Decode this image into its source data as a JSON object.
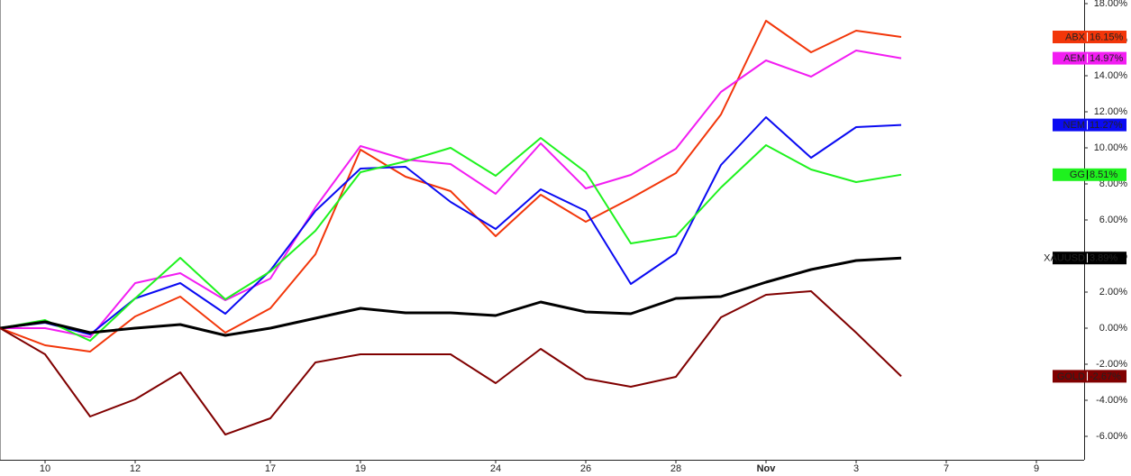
{
  "chart_data": {
    "type": "line",
    "categories": [
      null,
      "10",
      null,
      "12",
      null,
      null,
      "17",
      null,
      "19",
      null,
      null,
      "24",
      null,
      "26",
      null,
      "28",
      null,
      "Nov",
      null,
      "3",
      null,
      "7",
      null,
      "9",
      null
    ],
    "ylim": [
      -7.3,
      18.2
    ],
    "yticks": [
      {
        "value": -6,
        "label": "-6.00%"
      },
      {
        "value": -4,
        "label": "-4.00%"
      },
      {
        "value": -2,
        "label": "-2.00%"
      },
      {
        "value": 0,
        "label": "0.00%"
      },
      {
        "value": 2,
        "label": "2.00%"
      },
      {
        "value": 4,
        "label": "4.00%"
      },
      {
        "value": 6,
        "label": "6.00%"
      },
      {
        "value": 8,
        "label": "8.00%"
      },
      {
        "value": 10,
        "label": "10.00%"
      },
      {
        "value": 12,
        "label": "12.00%"
      },
      {
        "value": 14,
        "label": "14.00%"
      },
      {
        "value": 16,
        "label": "16.00%"
      },
      {
        "value": 18,
        "label": "18.00%"
      }
    ],
    "series": [
      {
        "name": "ABX",
        "color": "#f2360a",
        "values": [
          0,
          -0.95,
          -1.3,
          0.65,
          1.75,
          -0.25,
          1.1,
          4.1,
          9.9,
          8.4,
          7.6,
          5.1,
          7.4,
          5.9,
          7.2,
          8.6,
          11.85,
          17.05,
          15.3,
          16.5,
          16.15,
          null,
          null,
          null,
          null
        ],
        "value_labels": [
          null,
          null,
          null,
          null,
          null,
          null,
          null,
          null,
          null,
          null,
          null,
          null,
          null,
          null,
          null,
          null,
          null,
          null,
          null,
          null,
          "16.15%",
          null,
          null,
          null,
          null
        ]
      },
      {
        "name": "AEM",
        "color": "#f21df2",
        "values": [
          0,
          0,
          -0.5,
          2.5,
          3.05,
          1.55,
          2.75,
          6.7,
          10.1,
          9.35,
          9.1,
          7.45,
          10.25,
          7.75,
          8.5,
          9.95,
          13.1,
          14.85,
          13.95,
          15.4,
          14.97,
          null,
          null,
          null,
          null
        ],
        "value_labels": [
          null,
          null,
          null,
          null,
          null,
          null,
          null,
          null,
          null,
          null,
          null,
          null,
          null,
          null,
          null,
          null,
          null,
          null,
          null,
          null,
          "14.97%",
          null,
          null,
          null,
          null
        ]
      },
      {
        "name": "NEM",
        "color": "#0a0af2",
        "values": [
          0,
          0.3,
          -0.35,
          1.65,
          2.5,
          0.8,
          3.2,
          6.5,
          8.85,
          8.95,
          7.0,
          5.5,
          7.7,
          6.5,
          2.45,
          4.15,
          9.05,
          11.7,
          9.45,
          11.15,
          11.27,
          null,
          null,
          null,
          null
        ],
        "value_labels": [
          null,
          null,
          null,
          null,
          null,
          null,
          null,
          null,
          null,
          null,
          null,
          null,
          null,
          null,
          null,
          null,
          null,
          null,
          null,
          null,
          "11.27%",
          null,
          null,
          null,
          null
        ]
      },
      {
        "name": "GG",
        "color": "#1ef21e",
        "values": [
          0,
          0.45,
          -0.7,
          1.65,
          3.9,
          1.6,
          3.15,
          5.4,
          8.65,
          9.25,
          10.0,
          8.45,
          10.55,
          8.65,
          4.7,
          5.1,
          7.8,
          10.15,
          8.8,
          8.1,
          8.51,
          null,
          null,
          null,
          null
        ],
        "value_labels": [
          null,
          null,
          null,
          null,
          null,
          null,
          null,
          null,
          null,
          null,
          null,
          null,
          null,
          null,
          null,
          null,
          null,
          null,
          null,
          null,
          "8.51%",
          null,
          null,
          null,
          null
        ]
      },
      {
        "name": "XAUUSD",
        "color": "#000000",
        "values": [
          0,
          0.35,
          -0.25,
          0,
          0.2,
          -0.4,
          0,
          0.55,
          1.1,
          0.85,
          0.85,
          0.7,
          1.45,
          0.9,
          0.8,
          1.65,
          1.75,
          2.55,
          3.25,
          3.75,
          3.89,
          null,
          null,
          null,
          null
        ],
        "value_labels": [
          null,
          null,
          null,
          null,
          null,
          null,
          null,
          null,
          null,
          null,
          null,
          null,
          null,
          null,
          null,
          null,
          null,
          null,
          null,
          null,
          "3.89%",
          null,
          null,
          null,
          null
        ]
      },
      {
        "name": "GOLD",
        "color": "#800000",
        "values": [
          0,
          -1.45,
          -4.9,
          -3.95,
          -2.45,
          -5.9,
          -5.0,
          -1.9,
          -1.45,
          -1.45,
          -1.45,
          -3.05,
          -1.15,
          -2.8,
          -3.25,
          -2.7,
          0.6,
          1.85,
          2.05,
          -0.25,
          -2.67,
          null,
          null,
          null,
          null
        ],
        "value_labels": [
          null,
          null,
          null,
          null,
          null,
          null,
          null,
          null,
          null,
          null,
          null,
          null,
          null,
          null,
          null,
          null,
          null,
          null,
          null,
          null,
          "-2.67%",
          null,
          null,
          null,
          null
        ]
      }
    ]
  }
}
